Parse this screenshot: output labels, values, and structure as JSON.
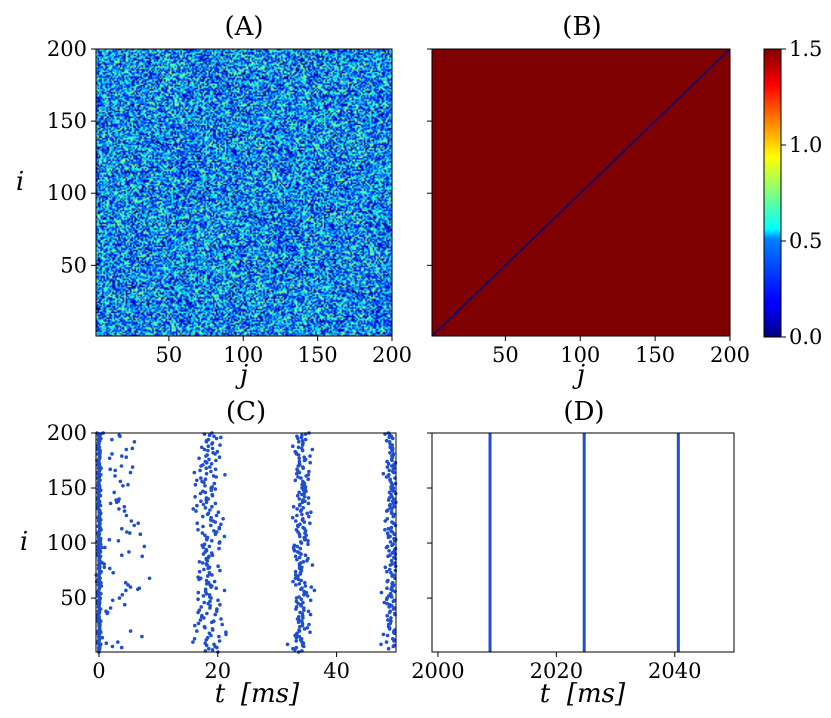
{
  "chart_data": [
    {
      "panel": "A",
      "type": "heatmap",
      "title": "(A)",
      "xlabel": "j",
      "ylabel": "i",
      "xlim": [
        1,
        200
      ],
      "ylim": [
        1,
        200
      ],
      "xticks": [
        50,
        100,
        150,
        200
      ],
      "yticks": [
        50,
        100,
        150,
        200
      ],
      "colormap": "jet",
      "pattern": "random",
      "value_range": [
        0.0,
        0.8
      ]
    },
    {
      "panel": "B",
      "type": "heatmap",
      "title": "(B)",
      "xlabel": "j",
      "ylabel": "",
      "xlim": [
        1,
        200
      ],
      "ylim": [
        1,
        200
      ],
      "xticks": [
        50,
        100,
        150,
        200
      ],
      "yticks": [
        50,
        100,
        150,
        200
      ],
      "colormap": "jet",
      "pattern": "uniform-with-zero-diagonal",
      "uniform_value": 1.5,
      "diagonal_value": 0.0,
      "colorbar": {
        "min": 0.0,
        "max": 1.5,
        "ticks": [
          "0.0",
          "0.5",
          "1.0",
          "1.5"
        ]
      }
    },
    {
      "panel": "C",
      "type": "scatter",
      "title": "(C)",
      "xlabel": "t",
      "xunit": "[ms]",
      "ylabel": "i",
      "xlim": [
        -0.5,
        50
      ],
      "ylim": [
        1,
        200
      ],
      "xticks": [
        0,
        20,
        40
      ],
      "yticks": [
        50,
        100,
        150,
        200
      ],
      "color": "#1f4fd0",
      "spike_bursts": [
        {
          "center": 0,
          "spread": 0.15,
          "neurons": "all"
        },
        {
          "center": 3,
          "spread": 2.5,
          "neurons": "sparse"
        },
        {
          "center": 18.5,
          "spread": 1.2,
          "neurons": "all"
        },
        {
          "center": 34.2,
          "spread": 0.8,
          "neurons": "all"
        },
        {
          "center": 49.3,
          "spread": 0.6,
          "neurons": "all"
        }
      ]
    },
    {
      "panel": "D",
      "type": "scatter",
      "title": "(D)",
      "xlabel": "t",
      "xunit": "[ms]",
      "ylabel": "",
      "xlim": [
        1999,
        2050
      ],
      "ylim": [
        1,
        200
      ],
      "xticks": [
        2000,
        2020,
        2040
      ],
      "yticks": [
        50,
        100,
        150,
        200
      ],
      "color": "#1f4fd0",
      "spike_times": [
        2008.8,
        2024.7,
        2040.6
      ]
    }
  ]
}
